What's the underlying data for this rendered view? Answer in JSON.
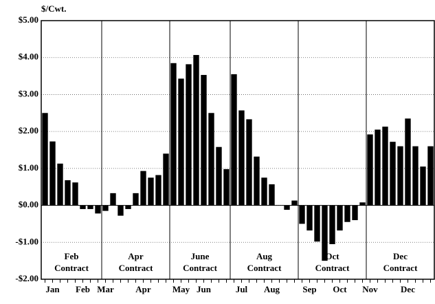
{
  "chart_data": {
    "type": "bar",
    "y_label": "$/Cwt.",
    "color": "#000000",
    "grid": true,
    "ylim": [
      -2,
      5
    ],
    "yticks": [
      {
        "value": -2,
        "label": "-$2.00"
      },
      {
        "value": -1,
        "label": "-$1.00"
      },
      {
        "value": 0,
        "label": "$0.00"
      },
      {
        "value": 1,
        "label": "$1.00"
      },
      {
        "value": 2,
        "label": "$2.00"
      },
      {
        "value": 3,
        "label": "$3.00"
      },
      {
        "value": 4,
        "label": "$4.00"
      },
      {
        "value": 5,
        "label": "$5.00"
      }
    ],
    "categories": [
      null,
      "Jan",
      null,
      null,
      null,
      "Feb",
      null,
      null,
      "Mar",
      null,
      null,
      null,
      null,
      "Apr",
      null,
      null,
      null,
      null,
      "May",
      null,
      null,
      "Jun",
      null,
      null,
      null,
      null,
      "Jul",
      null,
      null,
      null,
      "Aug",
      null,
      null,
      null,
      null,
      "Sep",
      null,
      null,
      null,
      "Oct",
      null,
      null,
      null,
      "Nov",
      null,
      null,
      null,
      null,
      "Dec",
      null,
      null,
      null
    ],
    "values": [
      2.5,
      1.73,
      1.13,
      0.68,
      0.62,
      -0.1,
      -0.1,
      -0.22,
      -0.15,
      0.33,
      -0.28,
      -0.1,
      0.33,
      0.93,
      0.75,
      0.82,
      1.4,
      3.85,
      3.43,
      3.82,
      4.07,
      3.53,
      2.5,
      1.58,
      0.98,
      3.55,
      2.57,
      2.33,
      1.32,
      0.75,
      0.57,
      0.0,
      -0.12,
      0.13,
      -0.5,
      -0.68,
      -0.98,
      -1.5,
      -1.05,
      -0.68,
      -0.45,
      -0.4,
      0.08,
      1.92,
      2.05,
      2.13,
      1.72,
      1.6,
      2.35,
      1.6,
      1.05,
      1.6
    ],
    "annotations": [
      [
        "Feb",
        "Contract"
      ],
      [
        "Apr",
        "Contract"
      ],
      [
        "June",
        "Contract"
      ],
      [
        "Aug",
        "Contract"
      ],
      [
        "Oct",
        "Contract"
      ],
      [
        "Dec",
        "Contract"
      ]
    ]
  }
}
